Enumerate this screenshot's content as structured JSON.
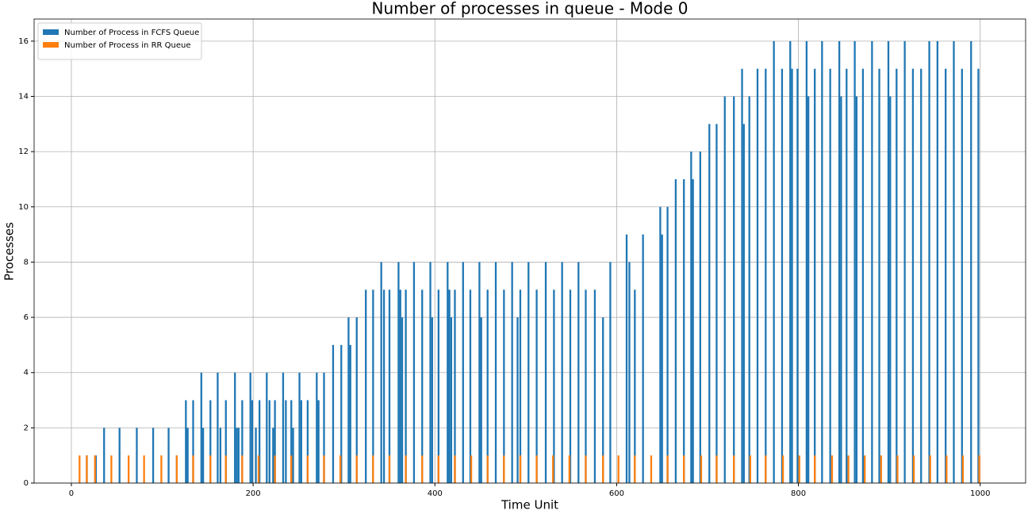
{
  "chart_data": {
    "type": "bar",
    "title": "Number of processes in queue - Mode 0",
    "xlabel": "Time Unit",
    "ylabel": "Processes",
    "xlim": [
      -41,
      1050
    ],
    "ylim": [
      0,
      16.8
    ],
    "xticks": [
      0,
      200,
      400,
      600,
      800,
      1000
    ],
    "yticks": [
      0,
      2,
      4,
      6,
      8,
      10,
      12,
      14,
      16
    ],
    "grid": true,
    "legend": "upper left",
    "bar_width": 2,
    "series": [
      {
        "name": "Number of Process in FCFS Queue",
        "color": "#1f77b4",
        "x": [
          17,
          27,
          36,
          53,
          72,
          90,
          107,
          116,
          126,
          128,
          134,
          143,
          145,
          153,
          161,
          164,
          170,
          180,
          182,
          184,
          188,
          197,
          199,
          203,
          207,
          215,
          218,
          222,
          224,
          233,
          236,
          242,
          244,
          251,
          253,
          260,
          270,
          272,
          278,
          288,
          297,
          305,
          307,
          314,
          324,
          332,
          341,
          344,
          350,
          360,
          362,
          364,
          368,
          377,
          386,
          395,
          397,
          404,
          414,
          416,
          418,
          422,
          431,
          439,
          449,
          451,
          458,
          467,
          476,
          485,
          491,
          494,
          503,
          512,
          522,
          531,
          540,
          549,
          558,
          566,
          576,
          585,
          593,
          611,
          614,
          620,
          629,
          648,
          650,
          656,
          665,
          674,
          682,
          684,
          692,
          702,
          710,
          719,
          729,
          738,
          740,
          746,
          755,
          764,
          773,
          782,
          791,
          793,
          799,
          809,
          811,
          818,
          826,
          835,
          845,
          847,
          853,
          862,
          864,
          871,
          881,
          889,
          899,
          901,
          908,
          917,
          926,
          935,
          944,
          953,
          962,
          971,
          980,
          990,
          998
        ],
        "values": [
          1,
          1,
          2,
          2,
          2,
          2,
          2,
          1,
          3,
          2,
          3,
          4,
          2,
          3,
          4,
          2,
          3,
          4,
          2,
          2,
          3,
          4,
          3,
          2,
          3,
          4,
          3,
          2,
          3,
          4,
          3,
          3,
          2,
          4,
          3,
          3,
          4,
          3,
          4,
          5,
          5,
          6,
          5,
          6,
          7,
          7,
          8,
          7,
          7,
          8,
          7,
          6,
          7,
          8,
          7,
          8,
          6,
          7,
          8,
          7,
          6,
          7,
          8,
          7,
          8,
          6,
          7,
          8,
          7,
          8,
          6,
          7,
          8,
          7,
          8,
          7,
          8,
          7,
          8,
          7,
          7,
          6,
          8,
          9,
          8,
          7,
          9,
          10,
          9,
          10,
          11,
          11,
          12,
          11,
          12,
          13,
          13,
          14,
          14,
          15,
          13,
          14,
          15,
          15,
          16,
          15,
          16,
          15,
          15,
          16,
          14,
          15,
          16,
          15,
          16,
          14,
          15,
          16,
          14,
          15,
          16,
          15,
          16,
          14,
          15,
          16,
          15,
          15,
          16,
          16,
          15,
          16,
          15,
          16,
          15
        ]
      },
      {
        "name": "Number of Process in RR Queue",
        "color": "#ff7f0e",
        "x": [
          9,
          17,
          26,
          44,
          63,
          80,
          99,
          116,
          134,
          153,
          170,
          188,
          206,
          224,
          242,
          260,
          278,
          296,
          314,
          332,
          350,
          368,
          386,
          404,
          422,
          440,
          458,
          476,
          494,
          512,
          530,
          548,
          566,
          585,
          602,
          620,
          638,
          656,
          674,
          693,
          710,
          729,
          747,
          764,
          783,
          801,
          818,
          837,
          855,
          873,
          891,
          909,
          927,
          945,
          963,
          981,
          999
        ],
        "values": [
          1,
          1,
          1,
          1,
          1,
          1,
          1,
          1,
          1,
          1,
          1,
          1,
          1,
          1,
          1,
          1,
          1,
          1,
          1,
          1,
          1,
          1,
          1,
          1,
          1,
          1,
          1,
          1,
          1,
          1,
          1,
          1,
          1,
          1,
          1,
          1,
          1,
          1,
          1,
          1,
          1,
          1,
          1,
          1,
          1,
          1,
          1,
          1,
          1,
          1,
          1,
          1,
          1,
          1,
          1,
          1,
          1
        ]
      }
    ]
  }
}
